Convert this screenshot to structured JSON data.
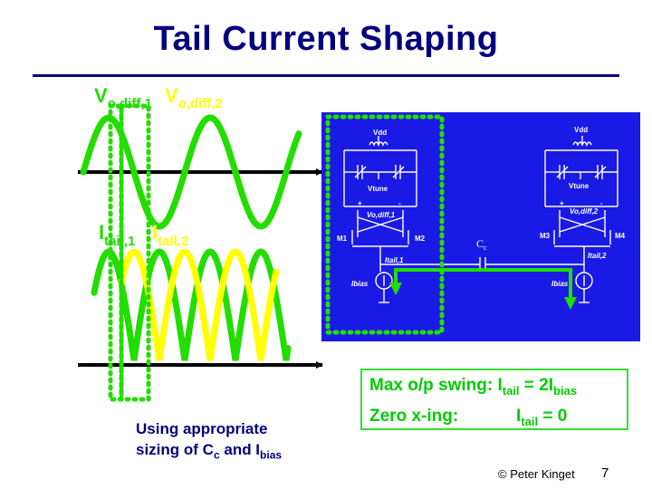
{
  "title": "Tail Current Shaping",
  "waveform_labels": {
    "vo1_main": "V",
    "vo1_sub": "o,diff,1",
    "vo2_main": "V",
    "vo2_sub": "o,diff,2",
    "it1_main": "I",
    "it1_sub": "tail,1",
    "it2_main": "I",
    "it2_sub": "tail,2"
  },
  "circuit": {
    "vdd_left": "Vdd",
    "vdd_right": "Vdd",
    "vtune_left": "Vtune",
    "vtune_right": "Vtune",
    "vo_left": "Vo,diff,1",
    "vo_right": "Vo,diff,2",
    "plus_left": "+",
    "minus_left": "-",
    "plus_right": "+",
    "minus_right": "-",
    "m1": "M1",
    "m2": "M2",
    "m3": "M3",
    "m4": "M4",
    "itail1": "Itail,1",
    "itail2": "Itail,2",
    "ibias_left": "Ibias",
    "ibias_right": "Ibias",
    "cc_main": "C",
    "cc_sub": "c"
  },
  "caption": {
    "line1": "Using appropriate",
    "line2_a": "sizing of C",
    "line2_sub_c": "c",
    "line2_b": " and I",
    "line2_sub_bias": "bias"
  },
  "info_box": {
    "line1_label": "Max o/p swing: I",
    "line1_sub": "tail",
    "line1_eq": " = 2I",
    "line1_sub2": "bias",
    "line2_label": "Zero x-ing:",
    "line2_i": "I",
    "line2_sub": "tail",
    "line2_eq": " = 0"
  },
  "footer": {
    "copyright": "© Peter Kinget",
    "page": "7"
  },
  "colors": {
    "title": "#000080",
    "green": "#22dd00",
    "yellow": "#ffff00",
    "axis": "#000000",
    "panel": "#1a1ae6",
    "panel_text": "#ffffff",
    "box_green": "#33dd33"
  }
}
